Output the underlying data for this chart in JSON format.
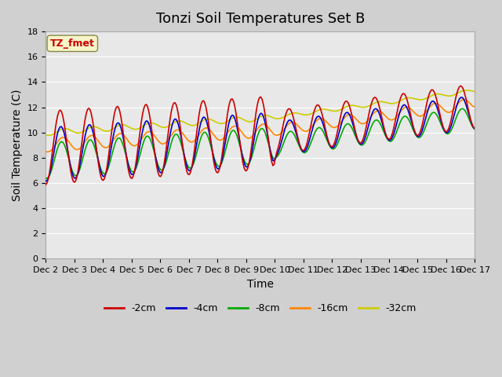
{
  "title": "Tonzi Soil Temperatures Set B",
  "xlabel": "Time",
  "ylabel": "Soil Temperature (C)",
  "annotation_text": "TZ_fmet",
  "ylim": [
    0,
    18
  ],
  "yticks": [
    0,
    2,
    4,
    6,
    8,
    10,
    12,
    14,
    16,
    18
  ],
  "xtick_labels": [
    "Dec 2",
    "Dec 3",
    "Dec 4",
    "Dec 5",
    "Dec 6",
    "Dec 7",
    "Dec 8",
    "Dec 9",
    "Dec 10",
    "Dec 11",
    "Dec 12",
    "Dec 13",
    "Dec 14",
    "Dec 15",
    "Dec 16",
    "Dec 17"
  ],
  "series_colors": [
    "#cc0000",
    "#0000cc",
    "#00aa00",
    "#ff8800",
    "#cccc00"
  ],
  "series_labels": [
    "-2cm",
    "-4cm",
    "-8cm",
    "-16cm",
    "-32cm"
  ],
  "background_color": "#e8e8e8",
  "plot_bg_color": "#e8e8e8",
  "n_points": 360,
  "title_fontsize": 13,
  "axis_label_fontsize": 10
}
